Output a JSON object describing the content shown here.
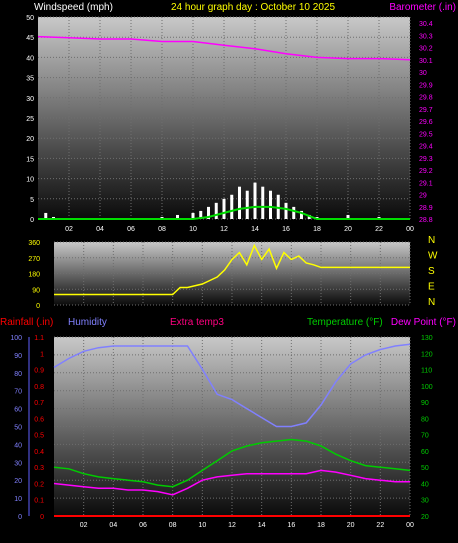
{
  "colors": {
    "wind": "#ffffff",
    "gust_bar": "#ffffff",
    "wind_avg": "#00dd00",
    "barometer": "#ff00ff",
    "direction": "#ffff00",
    "rain": "#ff0000",
    "humidity": "#8080ff",
    "extratemp": "#ff0080",
    "temperature": "#00cc00",
    "dewpoint": "#ff00ff",
    "title": "#ffff00"
  },
  "chart_data": [
    {
      "type": "line",
      "title": "24 hour graph day : October 10 2025",
      "ylabel_left": "Windspeed (mph)",
      "ylabel_right": "Barometer (.in)",
      "xticks": [
        "02",
        "04",
        "06",
        "08",
        "10",
        "12",
        "14",
        "16",
        "18",
        "20",
        "22",
        "00"
      ],
      "ylim_left": [
        0,
        50
      ],
      "yticks_left": [
        0,
        5,
        10,
        15,
        20,
        25,
        30,
        35,
        40,
        45,
        50
      ],
      "ylim_right": [
        28.8,
        30.45
      ],
      "yticks_right": [
        "28.8",
        "28.9",
        "29",
        "29.1",
        "29.2",
        "29.3",
        "29.4",
        "29.5",
        "29.6",
        "29.7",
        "29.8",
        "29.9",
        "30",
        "30.1",
        "30.2",
        "30.3",
        "30.4"
      ],
      "grid": true,
      "series": [
        {
          "name": "Barometer",
          "axis": "right",
          "x": [
            0,
            2,
            4,
            6,
            8,
            10,
            12,
            14,
            16,
            18,
            20,
            22,
            24
          ],
          "values": [
            30.29,
            30.28,
            30.27,
            30.27,
            30.25,
            30.25,
            30.22,
            30.19,
            30.15,
            30.12,
            30.11,
            30.11,
            30.1
          ]
        },
        {
          "name": "Windspeed",
          "axis": "left",
          "x": [
            0,
            0.5,
            1,
            2,
            4,
            6,
            8,
            9,
            10,
            10.5,
            11,
            11.5,
            12,
            12.5,
            13,
            13.5,
            14,
            14.5,
            15,
            15.5,
            16,
            16.5,
            17,
            17.5,
            18,
            19,
            20,
            21,
            22,
            23,
            24
          ],
          "values": [
            0,
            1.5,
            0.5,
            0,
            0,
            0,
            0.5,
            1,
            1.5,
            2,
            3,
            4,
            5,
            6,
            8,
            7,
            9,
            8,
            7,
            6,
            4,
            3,
            2,
            1,
            0.5,
            0,
            1,
            0,
            0.5,
            0,
            0
          ]
        },
        {
          "name": "Wind average",
          "axis": "left",
          "x": [
            0,
            10,
            11,
            12,
            13,
            14,
            15,
            16,
            17,
            18,
            24
          ],
          "values": [
            0,
            0,
            0.5,
            1.5,
            2.5,
            3,
            3,
            2.5,
            1.5,
            0,
            0
          ]
        }
      ]
    },
    {
      "type": "line",
      "yticks": [
        0,
        90,
        180,
        270,
        360
      ],
      "ylim": [
        0,
        360
      ],
      "right_labels": [
        "N",
        "W",
        "S",
        "E",
        "N"
      ],
      "grid": true,
      "series": [
        {
          "name": "Wind direction",
          "x": [
            0,
            8,
            8.5,
            9,
            10,
            10.5,
            11,
            11.5,
            12,
            12.5,
            13,
            13.5,
            14,
            14.5,
            15,
            15.5,
            16,
            16.5,
            17,
            17.5,
            18,
            20,
            22,
            24
          ],
          "values": [
            60,
            60,
            100,
            100,
            120,
            140,
            160,
            200,
            260,
            300,
            230,
            340,
            260,
            320,
            210,
            300,
            260,
            280,
            240,
            230,
            215,
            215,
            215,
            215
          ]
        }
      ]
    },
    {
      "type": "line",
      "ylabel_left_1": "Rainfall (.in)",
      "ylabel_left_2": "Humidity",
      "label_center": "Extra temp3",
      "ylabel_right_1": "Temperature (°F)",
      "ylabel_right_2": "Dew Point (°F)",
      "xticks": [
        "02",
        "04",
        "06",
        "08",
        "10",
        "12",
        "14",
        "16",
        "18",
        "20",
        "22",
        "00"
      ],
      "ylim_humidity": [
        0,
        100
      ],
      "yticks_humidity": [
        0,
        10,
        20,
        30,
        40,
        50,
        60,
        70,
        80,
        90,
        100
      ],
      "ylim_rain": [
        0,
        1.1
      ],
      "yticks_rain": [
        "0",
        "0.1",
        "0.2",
        "0.3",
        "0.4",
        "0.5",
        "0.6",
        "0.7",
        "0.8",
        "0.9",
        "1",
        "1.1"
      ],
      "ylim_temp": [
        20,
        130
      ],
      "yticks_temp": [
        20,
        30,
        40,
        50,
        60,
        70,
        80,
        90,
        100,
        110,
        120,
        130
      ],
      "grid": true,
      "series": [
        {
          "name": "Humidity",
          "axis": "humidity",
          "x": [
            0,
            1,
            2,
            3,
            4,
            5,
            6,
            7,
            8,
            9,
            10,
            11,
            12,
            13,
            14,
            15,
            16,
            17,
            18,
            19,
            20,
            21,
            22,
            23,
            24
          ],
          "values": [
            83,
            88,
            92,
            94,
            95,
            95,
            95,
            95,
            95,
            95,
            82,
            68,
            65,
            60,
            55,
            50,
            50,
            52,
            62,
            75,
            85,
            90,
            93,
            95,
            96
          ]
        },
        {
          "name": "Temperature",
          "axis": "temp",
          "x": [
            0,
            1,
            2,
            3,
            4,
            5,
            6,
            7,
            8,
            9,
            10,
            11,
            12,
            13,
            14,
            15,
            16,
            17,
            18,
            19,
            20,
            21,
            22,
            23,
            24
          ],
          "values": [
            50,
            49,
            46,
            44,
            43,
            42,
            41,
            39,
            38,
            42,
            48,
            54,
            60,
            63,
            65,
            66,
            67,
            66,
            63,
            58,
            54,
            51,
            50,
            49,
            48
          ]
        },
        {
          "name": "Dew Point",
          "axis": "temp",
          "x": [
            0,
            1,
            2,
            3,
            4,
            5,
            6,
            7,
            8,
            9,
            10,
            11,
            12,
            13,
            14,
            15,
            16,
            17,
            18,
            19,
            20,
            21,
            22,
            23,
            24
          ],
          "values": [
            40,
            39,
            38,
            37,
            37,
            36,
            36,
            35,
            33,
            37,
            42,
            44,
            45,
            46,
            46,
            46,
            46,
            46,
            48,
            47,
            45,
            43,
            42,
            41,
            41
          ]
        },
        {
          "name": "Rainfall",
          "axis": "rain",
          "x": [
            0,
            24
          ],
          "values": [
            0,
            0
          ]
        }
      ]
    }
  ]
}
